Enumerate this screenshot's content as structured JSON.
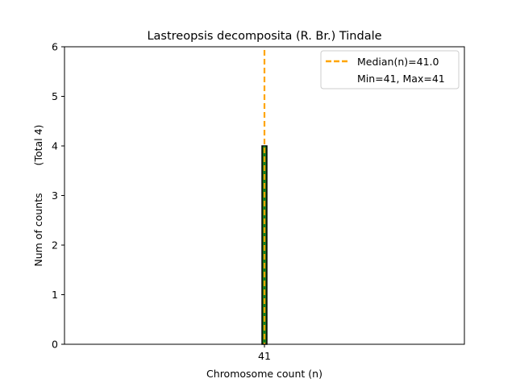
{
  "chart_data": {
    "type": "bar",
    "title": "Lastreopsis decomposita (R. Br.) Tindale",
    "xlabel": "Chromosome count (n)",
    "ylabel": "Num of counts",
    "ylabel_total": "(Total 4)",
    "categories": [
      "41"
    ],
    "values": [
      4
    ],
    "ylim": [
      0,
      6
    ],
    "yticks": [
      "0",
      "1",
      "2",
      "3",
      "4",
      "5",
      "6"
    ],
    "median": 41.0,
    "min": 41,
    "max": 41,
    "grid": false,
    "legend_position": "top-right",
    "legend": {
      "median_label": "Median(n)=41.0",
      "range_label": "Min=41, Max=41"
    },
    "colors": {
      "bar_fill": "#1a7a1a",
      "bar_edge": "#000000",
      "median_line": "#ffa500",
      "dotted_line": "#1a7a1a"
    }
  }
}
